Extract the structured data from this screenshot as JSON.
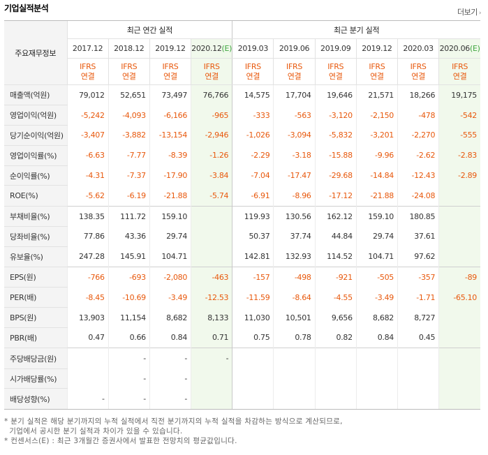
{
  "title": "기업실적분석",
  "more_label": "더보기",
  "more_arrow": "›",
  "header": {
    "corner": "주요재무정보",
    "annual_group": "최근 연간 실적",
    "quarter_group": "최근 분기 실적",
    "ifrs_line1": "IFRS",
    "ifrs_line2": "연결",
    "annual_periods": [
      "2017.12",
      "2018.12",
      "2019.12",
      "2020.12"
    ],
    "annual_est_mark": "(E)",
    "quarter_periods": [
      "2019.03",
      "2019.06",
      "2019.09",
      "2019.12",
      "2020.03",
      "2020.06"
    ],
    "quarter_est_mark": "(E)"
  },
  "rows": [
    {
      "label": "매출액(억원)",
      "values": [
        "79,012",
        "52,651",
        "73,497",
        "76,766",
        "14,575",
        "17,704",
        "19,646",
        "21,571",
        "18,266",
        "19,175"
      ]
    },
    {
      "label": "영업이익(억원)",
      "values": [
        "-5,242",
        "-4,093",
        "-6,166",
        "-965",
        "-333",
        "-563",
        "-3,120",
        "-2,150",
        "-478",
        "-542"
      ]
    },
    {
      "label": "당기순이익(억원)",
      "values": [
        "-3,407",
        "-3,882",
        "-13,154",
        "-2,946",
        "-1,026",
        "-3,094",
        "-5,832",
        "-3,201",
        "-2,270",
        "-555"
      ]
    },
    {
      "label": "영업이익률(%)",
      "values": [
        "-6.63",
        "-7.77",
        "-8.39",
        "-1.26",
        "-2.29",
        "-3.18",
        "-15.88",
        "-9.96",
        "-2.62",
        "-2.83"
      ]
    },
    {
      "label": "순이익률(%)",
      "values": [
        "-4.31",
        "-7.37",
        "-17.90",
        "-3.84",
        "-7.04",
        "-17.47",
        "-29.68",
        "-14.84",
        "-12.43",
        "-2.89"
      ]
    },
    {
      "label": "ROE(%)",
      "values": [
        "-5.62",
        "-6.19",
        "-21.88",
        "-5.74",
        "-6.91",
        "-8.96",
        "-17.12",
        "-21.88",
        "-24.08",
        ""
      ]
    },
    {
      "label": "부채비율(%)",
      "values": [
        "138.35",
        "111.72",
        "159.10",
        "",
        "119.93",
        "130.56",
        "162.12",
        "159.10",
        "180.85",
        ""
      ]
    },
    {
      "label": "당좌비율(%)",
      "values": [
        "77.86",
        "43.36",
        "29.74",
        "",
        "50.37",
        "37.74",
        "44.84",
        "29.74",
        "37.61",
        ""
      ]
    },
    {
      "label": "유보율(%)",
      "values": [
        "247.28",
        "145.91",
        "104.71",
        "",
        "142.81",
        "132.93",
        "114.52",
        "104.71",
        "97.62",
        ""
      ]
    },
    {
      "label": "EPS(원)",
      "values": [
        "-766",
        "-693",
        "-2,080",
        "-463",
        "-157",
        "-498",
        "-921",
        "-505",
        "-357",
        "-89"
      ]
    },
    {
      "label": "PER(배)",
      "values": [
        "-8.45",
        "-10.69",
        "-3.49",
        "-12.53",
        "-11.59",
        "-8.64",
        "-4.55",
        "-3.49",
        "-1.71",
        "-65.10"
      ]
    },
    {
      "label": "BPS(원)",
      "values": [
        "13,903",
        "11,154",
        "8,682",
        "8,133",
        "11,030",
        "10,501",
        "9,656",
        "8,682",
        "8,727",
        ""
      ]
    },
    {
      "label": "PBR(배)",
      "values": [
        "0.47",
        "0.66",
        "0.84",
        "0.71",
        "0.75",
        "0.78",
        "0.82",
        "0.84",
        "0.45",
        ""
      ]
    },
    {
      "label": "주당배당금(원)",
      "values": [
        "",
        "-",
        "-",
        "-",
        "",
        "",
        "",
        "",
        "",
        ""
      ]
    },
    {
      "label": "시가배당률(%)",
      "values": [
        "",
        "-",
        "-",
        "",
        "",
        "",
        "",
        "",
        "",
        ""
      ]
    },
    {
      "label": "배당성향(%)",
      "values": [
        "-",
        "-",
        "-",
        "",
        "",
        "",
        "",
        "",
        "",
        ""
      ]
    }
  ],
  "notes": [
    "* 분기 실적은 해당 분기까지의 누적 실적에서 직전 분기까지의 누적 실적을 차감하는 방식으로 계산되므로,",
    "  기업에서 공시한 분기 실적과 차이가 있을 수 있습니다.",
    "* 컨센서스(E) : 최근 3개월간 증권사에서 발표한 전망치의 평균값입니다."
  ],
  "colors": {
    "negative": "#e8580c",
    "estimate_bg": "#f1f9ec",
    "estimate_mark": "#3fa63f",
    "header_bg": "#f4f4f4"
  }
}
